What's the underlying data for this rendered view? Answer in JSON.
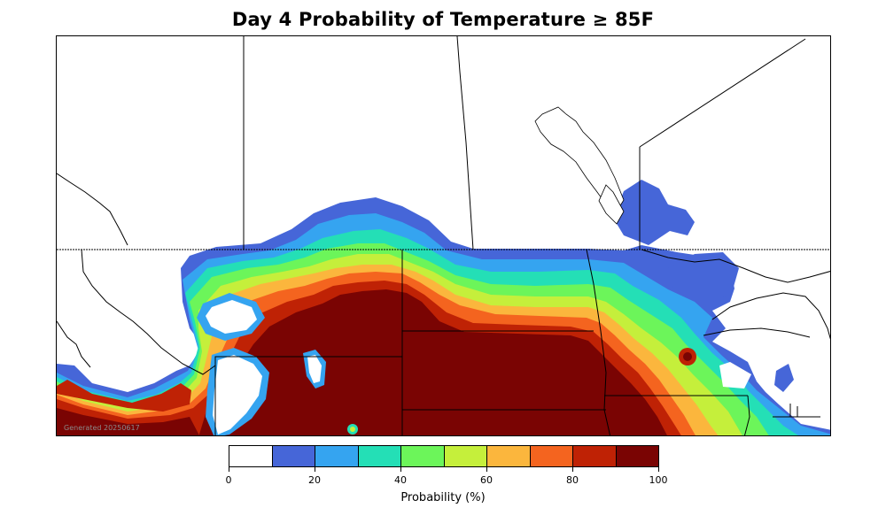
{
  "title": "Day 4 Probability of Temperature ≥ 85F",
  "watermark": "Generated 20250617",
  "colorbar": {
    "label": "Probability (%)",
    "bins": [
      "#ffffff",
      "#4666d8",
      "#35a4f0",
      "#24dfb6",
      "#6cf55a",
      "#c5ef3b",
      "#fbb63d",
      "#f4641f",
      "#bf2205",
      "#7a0403"
    ],
    "tick_labels": [
      "0",
      "20",
      "40",
      "60",
      "80",
      "100"
    ]
  }
}
